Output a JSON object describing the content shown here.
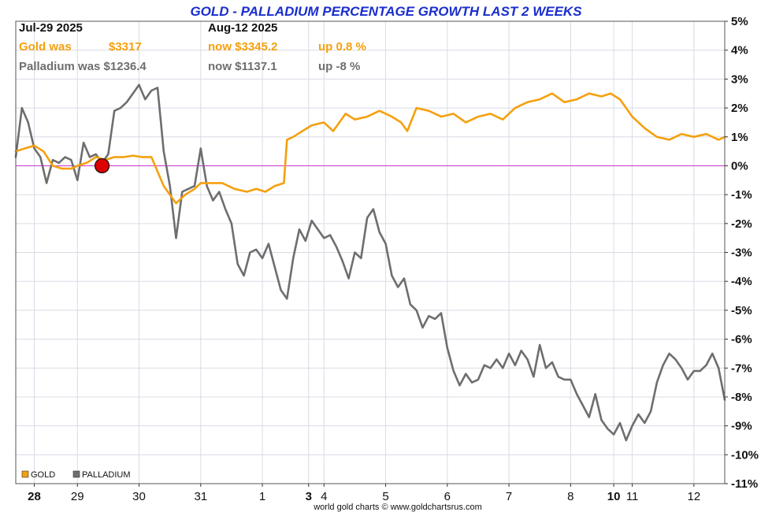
{
  "chart_data": {
    "type": "line",
    "title": "GOLD - PALLADIUM PERCENTAGE GROWTH LAST 2 WEEKS",
    "header": {
      "start_date": "Jul-29  2025",
      "end_date": "Aug-12  2025",
      "gold_was": "Gold was",
      "gold_was_value": "$3317",
      "gold_now": "now $3345.2",
      "gold_change": "up 0.8 %",
      "palladium_was": "Palladium was $1236.4",
      "palladium_now": "now $1137.1",
      "palladium_change": "up -8 %"
    },
    "colors": {
      "gold": "#f5a00f",
      "palladium": "#6e6e6e",
      "title": "#1a2ecc",
      "zero_line": "#cc33cc",
      "marker": "#dd0000",
      "grid": "#d9dce6"
    },
    "x_tick_labels": [
      {
        "label": "28",
        "x": 0.3,
        "bold": true
      },
      {
        "label": "29",
        "x": 1.0,
        "bold": false
      },
      {
        "label": "30",
        "x": 2.0,
        "bold": false
      },
      {
        "label": "31",
        "x": 3.0,
        "bold": false
      },
      {
        "label": "1",
        "x": 4.0,
        "bold": false
      },
      {
        "label": "3",
        "x": 4.75,
        "bold": true
      },
      {
        "label": "4",
        "x": 5.0,
        "bold": false
      },
      {
        "label": "5",
        "x": 6.0,
        "bold": false
      },
      {
        "label": "6",
        "x": 7.0,
        "bold": false
      },
      {
        "label": "7",
        "x": 8.0,
        "bold": false
      },
      {
        "label": "8",
        "x": 9.0,
        "bold": false
      },
      {
        "label": "10",
        "x": 9.7,
        "bold": true
      },
      {
        "label": "11",
        "x": 10.0,
        "bold": false
      },
      {
        "label": "12",
        "x": 11.0,
        "bold": false
      }
    ],
    "xlim": [
      0.0,
      11.5
    ],
    "ylim": [
      -11,
      5
    ],
    "y_ticks": [
      5,
      4,
      3,
      2,
      1,
      0,
      -1,
      -2,
      -3,
      -4,
      -5,
      -6,
      -7,
      -8,
      -9,
      -10,
      -11
    ],
    "y_tick_labels": [
      "5%",
      "4%",
      "3%",
      "2%",
      "1%",
      "0%",
      "-1%",
      "-2%",
      "-3%",
      "-4%",
      "-5%",
      "-6%",
      "-7%",
      "-8%",
      "-9%",
      "-10%",
      "-11%"
    ],
    "grid": true,
    "legend": {
      "placement": "bottom-left",
      "items": [
        "GOLD",
        "PALLADIUM"
      ]
    },
    "marker_point": {
      "x": 1.4,
      "y": 0.0
    },
    "series": [
      {
        "name": "GOLD",
        "x": [
          0.0,
          0.15,
          0.3,
          0.45,
          0.6,
          0.75,
          0.9,
          1.0,
          1.15,
          1.3,
          1.45,
          1.6,
          1.75,
          1.9,
          2.05,
          2.2,
          2.4,
          2.6,
          2.75,
          2.9,
          3.0,
          3.15,
          3.35,
          3.55,
          3.75,
          3.9,
          4.05,
          4.2,
          4.35,
          4.4,
          4.5,
          4.65,
          4.8,
          5.0,
          5.15,
          5.35,
          5.5,
          5.7,
          5.9,
          6.1,
          6.25,
          6.35,
          6.5,
          6.7,
          6.9,
          7.1,
          7.3,
          7.5,
          7.7,
          7.9,
          8.1,
          8.3,
          8.5,
          8.7,
          8.9,
          9.1,
          9.3,
          9.5,
          9.65,
          9.8,
          10.0,
          10.2,
          10.4,
          10.6,
          10.8,
          11.0,
          11.2,
          11.4,
          11.5
        ],
        "values": [
          0.5,
          0.6,
          0.7,
          0.5,
          0.0,
          -0.1,
          -0.1,
          0.0,
          0.1,
          0.3,
          0.2,
          0.3,
          0.3,
          0.35,
          0.3,
          0.3,
          -0.7,
          -1.3,
          -1.0,
          -0.8,
          -0.6,
          -0.6,
          -0.6,
          -0.8,
          -0.9,
          -0.8,
          -0.9,
          -0.7,
          -0.6,
          0.9,
          1.0,
          1.2,
          1.4,
          1.5,
          1.2,
          1.8,
          1.6,
          1.7,
          1.9,
          1.7,
          1.5,
          1.2,
          2.0,
          1.9,
          1.7,
          1.8,
          1.5,
          1.7,
          1.8,
          1.6,
          2.0,
          2.2,
          2.3,
          2.5,
          2.2,
          2.3,
          2.5,
          2.4,
          2.5,
          2.3,
          1.7,
          1.3,
          1.0,
          0.9,
          1.1,
          1.0,
          1.1,
          0.9,
          1.0
        ]
      },
      {
        "name": "PALLADIUM",
        "x": [
          0.0,
          0.1,
          0.2,
          0.3,
          0.4,
          0.5,
          0.6,
          0.7,
          0.8,
          0.9,
          1.0,
          1.1,
          1.2,
          1.3,
          1.4,
          1.5,
          1.6,
          1.7,
          1.8,
          1.9,
          2.0,
          2.1,
          2.2,
          2.3,
          2.4,
          2.5,
          2.6,
          2.7,
          2.8,
          2.9,
          3.0,
          3.1,
          3.2,
          3.3,
          3.4,
          3.5,
          3.6,
          3.7,
          3.8,
          3.9,
          4.0,
          4.1,
          4.2,
          4.3,
          4.4,
          4.5,
          4.6,
          4.7,
          4.8,
          4.9,
          5.0,
          5.1,
          5.2,
          5.3,
          5.4,
          5.5,
          5.6,
          5.7,
          5.8,
          5.9,
          6.0,
          6.1,
          6.2,
          6.3,
          6.4,
          6.5,
          6.6,
          6.7,
          6.8,
          6.9,
          7.0,
          7.1,
          7.2,
          7.3,
          7.4,
          7.5,
          7.6,
          7.7,
          7.8,
          7.9,
          8.0,
          8.1,
          8.2,
          8.3,
          8.4,
          8.5,
          8.6,
          8.7,
          8.8,
          8.9,
          9.0,
          9.1,
          9.2,
          9.3,
          9.4,
          9.5,
          9.6,
          9.7,
          9.8,
          9.9,
          10.0,
          10.1,
          10.2,
          10.3,
          10.4,
          10.5,
          10.6,
          10.7,
          10.8,
          10.9,
          11.0,
          11.1,
          11.2,
          11.3,
          11.4,
          11.5
        ],
        "values": [
          0.3,
          2.0,
          1.5,
          0.6,
          0.3,
          -0.6,
          0.2,
          0.1,
          0.3,
          0.2,
          -0.5,
          0.8,
          0.3,
          0.4,
          0.1,
          0.4,
          1.9,
          2.0,
          2.2,
          2.5,
          2.8,
          2.3,
          2.6,
          2.7,
          0.5,
          -0.7,
          -2.5,
          -0.9,
          -0.8,
          -0.7,
          0.6,
          -0.7,
          -1.2,
          -0.9,
          -1.5,
          -2.0,
          -3.4,
          -3.8,
          -3.0,
          -2.9,
          -3.2,
          -2.7,
          -3.5,
          -4.3,
          -4.6,
          -3.2,
          -2.2,
          -2.6,
          -1.9,
          -2.2,
          -2.5,
          -2.4,
          -2.8,
          -3.3,
          -3.9,
          -3.0,
          -3.2,
          -1.8,
          -1.5,
          -2.3,
          -2.7,
          -3.8,
          -4.2,
          -3.9,
          -4.8,
          -5.0,
          -5.6,
          -5.2,
          -5.3,
          -5.1,
          -6.3,
          -7.1,
          -7.6,
          -7.2,
          -7.5,
          -7.4,
          -6.9,
          -7.0,
          -6.7,
          -7.0,
          -6.5,
          -6.9,
          -6.4,
          -6.7,
          -7.3,
          -6.2,
          -7.0,
          -6.8,
          -7.3,
          -7.4,
          -7.4,
          -7.9,
          -8.3,
          -8.7,
          -7.9,
          -8.8,
          -9.1,
          -9.3,
          -8.9,
          -9.5,
          -9.0,
          -8.6,
          -8.9,
          -8.5,
          -7.5,
          -6.9,
          -6.5,
          -6.7,
          -7.0,
          -7.4,
          -7.1,
          -7.1,
          -6.9,
          -6.5,
          -7.0,
          -8.1
        ]
      }
    ]
  },
  "credit": "world gold charts © www.goldchartsrus.com"
}
